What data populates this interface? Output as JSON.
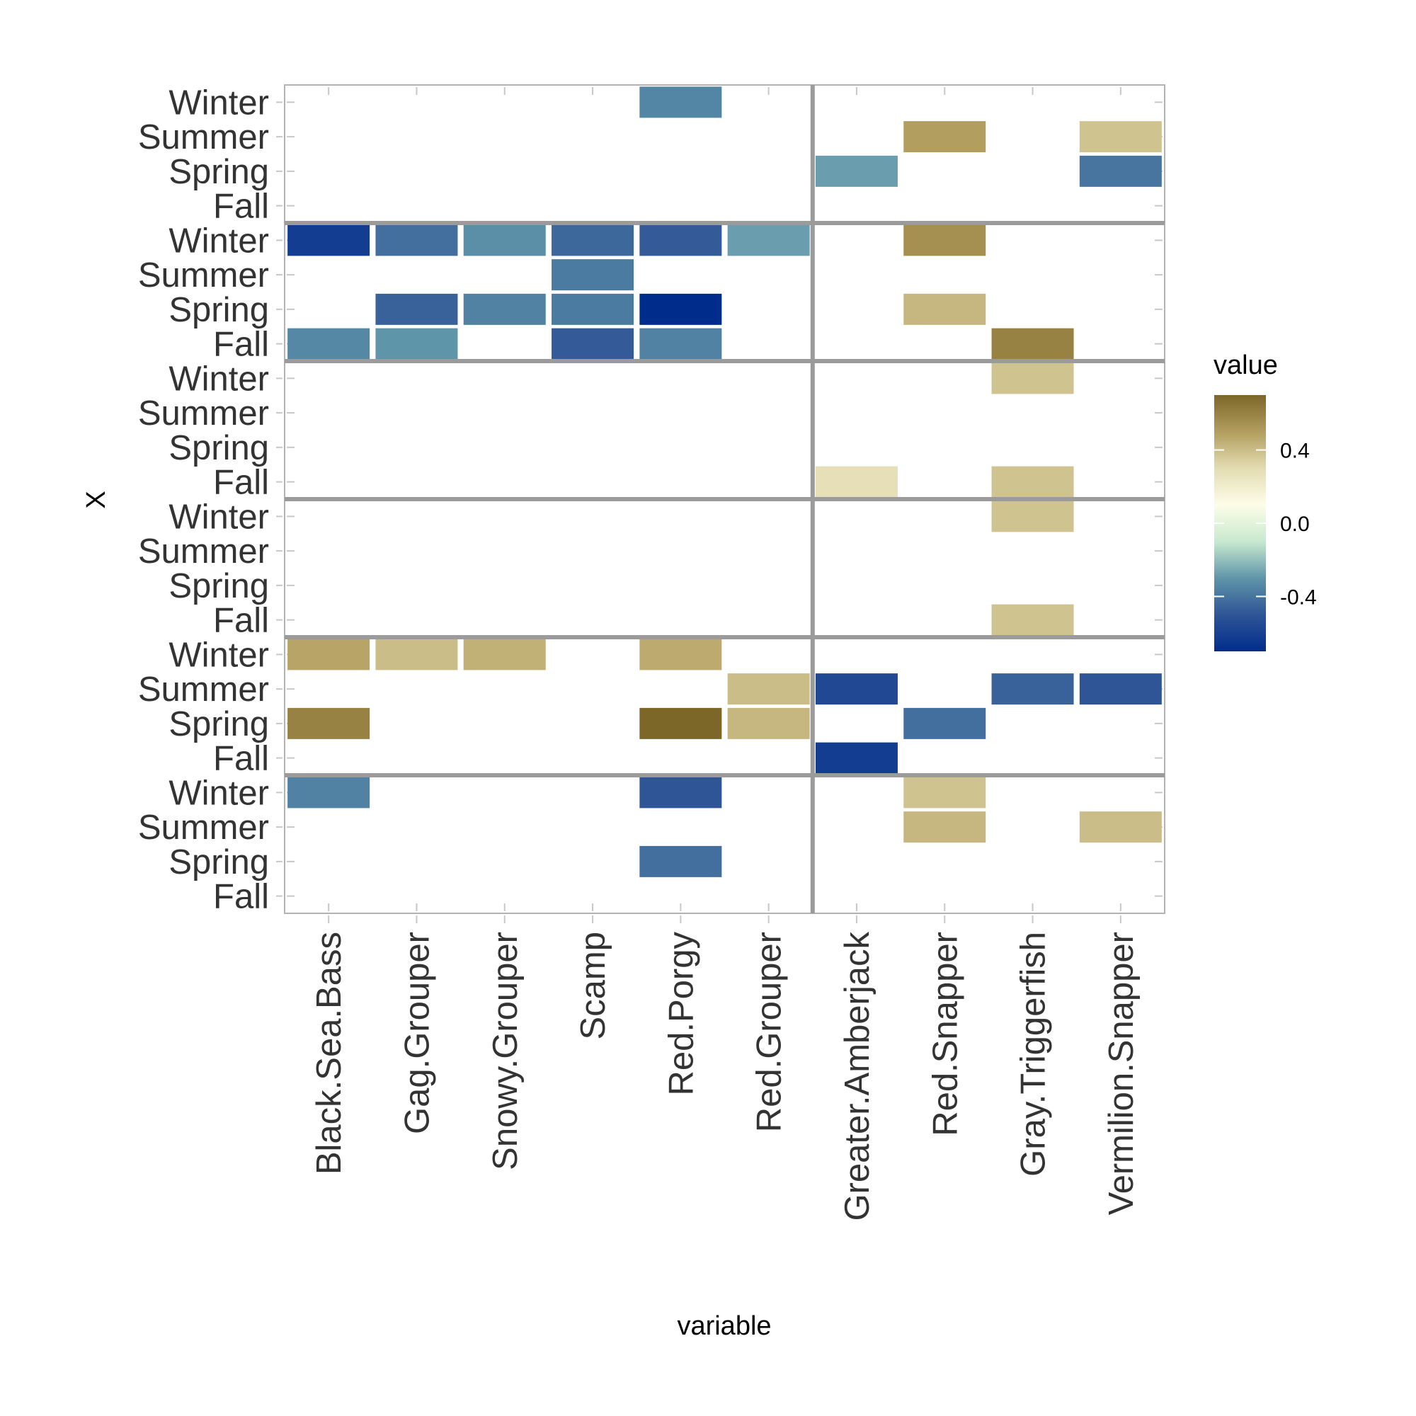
{
  "chart_data": {
    "type": "heatmap",
    "xlabel": "variable",
    "ylabel": "X",
    "categories": [
      "Black.Sea.Bass",
      "Gag.Grouper",
      "Snowy.Grouper",
      "Scamp",
      "Red.Porgy",
      "Red.Grouper",
      "Greater.Amberjack",
      "Red.Snapper",
      "Gray.Triggerfish",
      "Vermilion.Snapper"
    ],
    "rows": [
      "Winter",
      "Summer",
      "Spring",
      "Fall"
    ],
    "panels": 6,
    "column_groups": 2,
    "legend": {
      "title": "value",
      "labels": [
        "0.4",
        "0.0",
        "-0.4"
      ],
      "range": [
        -0.7,
        0.7
      ],
      "colors": [
        "#002d8c",
        "#2f5596",
        "#5f95a9",
        "#c8e9cf",
        "#fdfde8",
        "#e3dcb2",
        "#b29e5e",
        "#7c6628"
      ],
      "placement": "right"
    },
    "cells": [
      {
        "panel": 1,
        "row": "Winter",
        "variable": "Red.Porgy",
        "value": -0.35
      },
      {
        "panel": 1,
        "row": "Summer",
        "variable": "Red.Snapper",
        "value": 0.5
      },
      {
        "panel": 1,
        "row": "Summer",
        "variable": "Vermilion.Snapper",
        "value": 0.38
      },
      {
        "panel": 1,
        "row": "Spring",
        "variable": "Greater.Amberjack",
        "value": -0.28
      },
      {
        "panel": 1,
        "row": "Spring",
        "variable": "Vermilion.Snapper",
        "value": -0.4
      },
      {
        "panel": 2,
        "row": "Winter",
        "variable": "Black.Sea.Bass",
        "value": -0.62
      },
      {
        "panel": 2,
        "row": "Winter",
        "variable": "Gag.Grouper",
        "value": -0.42
      },
      {
        "panel": 2,
        "row": "Winter",
        "variable": "Snowy.Grouper",
        "value": -0.32
      },
      {
        "panel": 2,
        "row": "Winter",
        "variable": "Scamp",
        "value": -0.44
      },
      {
        "panel": 2,
        "row": "Winter",
        "variable": "Red.Porgy",
        "value": -0.48
      },
      {
        "panel": 2,
        "row": "Winter",
        "variable": "Red.Grouper",
        "value": -0.28
      },
      {
        "panel": 2,
        "row": "Winter",
        "variable": "Red.Snapper",
        "value": 0.55
      },
      {
        "panel": 2,
        "row": "Summer",
        "variable": "Scamp",
        "value": -0.38
      },
      {
        "panel": 2,
        "row": "Spring",
        "variable": "Gag.Grouper",
        "value": -0.46
      },
      {
        "panel": 2,
        "row": "Spring",
        "variable": "Snowy.Grouper",
        "value": -0.36
      },
      {
        "panel": 2,
        "row": "Spring",
        "variable": "Scamp",
        "value": -0.38
      },
      {
        "panel": 2,
        "row": "Spring",
        "variable": "Red.Porgy",
        "value": -0.7
      },
      {
        "panel": 2,
        "row": "Spring",
        "variable": "Red.Snapper",
        "value": 0.42
      },
      {
        "panel": 2,
        "row": "Fall",
        "variable": "Black.Sea.Bass",
        "value": -0.34
      },
      {
        "panel": 2,
        "row": "Fall",
        "variable": "Gag.Grouper",
        "value": -0.3
      },
      {
        "panel": 2,
        "row": "Fall",
        "variable": "Scamp",
        "value": -0.48
      },
      {
        "panel": 2,
        "row": "Fall",
        "variable": "Red.Porgy",
        "value": -0.36
      },
      {
        "panel": 2,
        "row": "Fall",
        "variable": "Gray.Triggerfish",
        "value": 0.6
      },
      {
        "panel": 3,
        "row": "Winter",
        "variable": "Gray.Triggerfish",
        "value": 0.38
      },
      {
        "panel": 3,
        "row": "Fall",
        "variable": "Greater.Amberjack",
        "value": 0.28
      },
      {
        "panel": 3,
        "row": "Fall",
        "variable": "Gray.Triggerfish",
        "value": 0.38
      },
      {
        "panel": 4,
        "row": "Winter",
        "variable": "Gray.Triggerfish",
        "value": 0.38
      },
      {
        "panel": 4,
        "row": "Fall",
        "variable": "Gray.Triggerfish",
        "value": 0.38
      },
      {
        "panel": 5,
        "row": "Winter",
        "variable": "Black.Sea.Bass",
        "value": 0.48
      },
      {
        "panel": 5,
        "row": "Winter",
        "variable": "Gag.Grouper",
        "value": 0.4
      },
      {
        "panel": 5,
        "row": "Winter",
        "variable": "Snowy.Grouper",
        "value": 0.44
      },
      {
        "panel": 5,
        "row": "Winter",
        "variable": "Red.Porgy",
        "value": 0.46
      },
      {
        "panel": 5,
        "row": "Summer",
        "variable": "Red.Grouper",
        "value": 0.4
      },
      {
        "panel": 5,
        "row": "Summer",
        "variable": "Greater.Amberjack",
        "value": -0.56
      },
      {
        "panel": 5,
        "row": "Summer",
        "variable": "Gray.Triggerfish",
        "value": -0.46
      },
      {
        "panel": 5,
        "row": "Summer",
        "variable": "Vermilion.Snapper",
        "value": -0.5
      },
      {
        "panel": 5,
        "row": "Spring",
        "variable": "Black.Sea.Bass",
        "value": 0.6
      },
      {
        "panel": 5,
        "row": "Spring",
        "variable": "Red.Porgy",
        "value": 0.7
      },
      {
        "panel": 5,
        "row": "Spring",
        "variable": "Red.Grouper",
        "value": 0.42
      },
      {
        "panel": 5,
        "row": "Spring",
        "variable": "Red.Snapper",
        "value": -0.42
      },
      {
        "panel": 5,
        "row": "Fall",
        "variable": "Greater.Amberjack",
        "value": -0.62
      },
      {
        "panel": 6,
        "row": "Winter",
        "variable": "Black.Sea.Bass",
        "value": -0.36
      },
      {
        "panel": 6,
        "row": "Winter",
        "variable": "Red.Porgy",
        "value": -0.5
      },
      {
        "panel": 6,
        "row": "Winter",
        "variable": "Red.Snapper",
        "value": 0.38
      },
      {
        "panel": 6,
        "row": "Summer",
        "variable": "Red.Snapper",
        "value": 0.42
      },
      {
        "panel": 6,
        "row": "Summer",
        "variable": "Vermilion.Snapper",
        "value": 0.4
      },
      {
        "panel": 6,
        "row": "Spring",
        "variable": "Red.Porgy",
        "value": -0.42
      }
    ]
  }
}
